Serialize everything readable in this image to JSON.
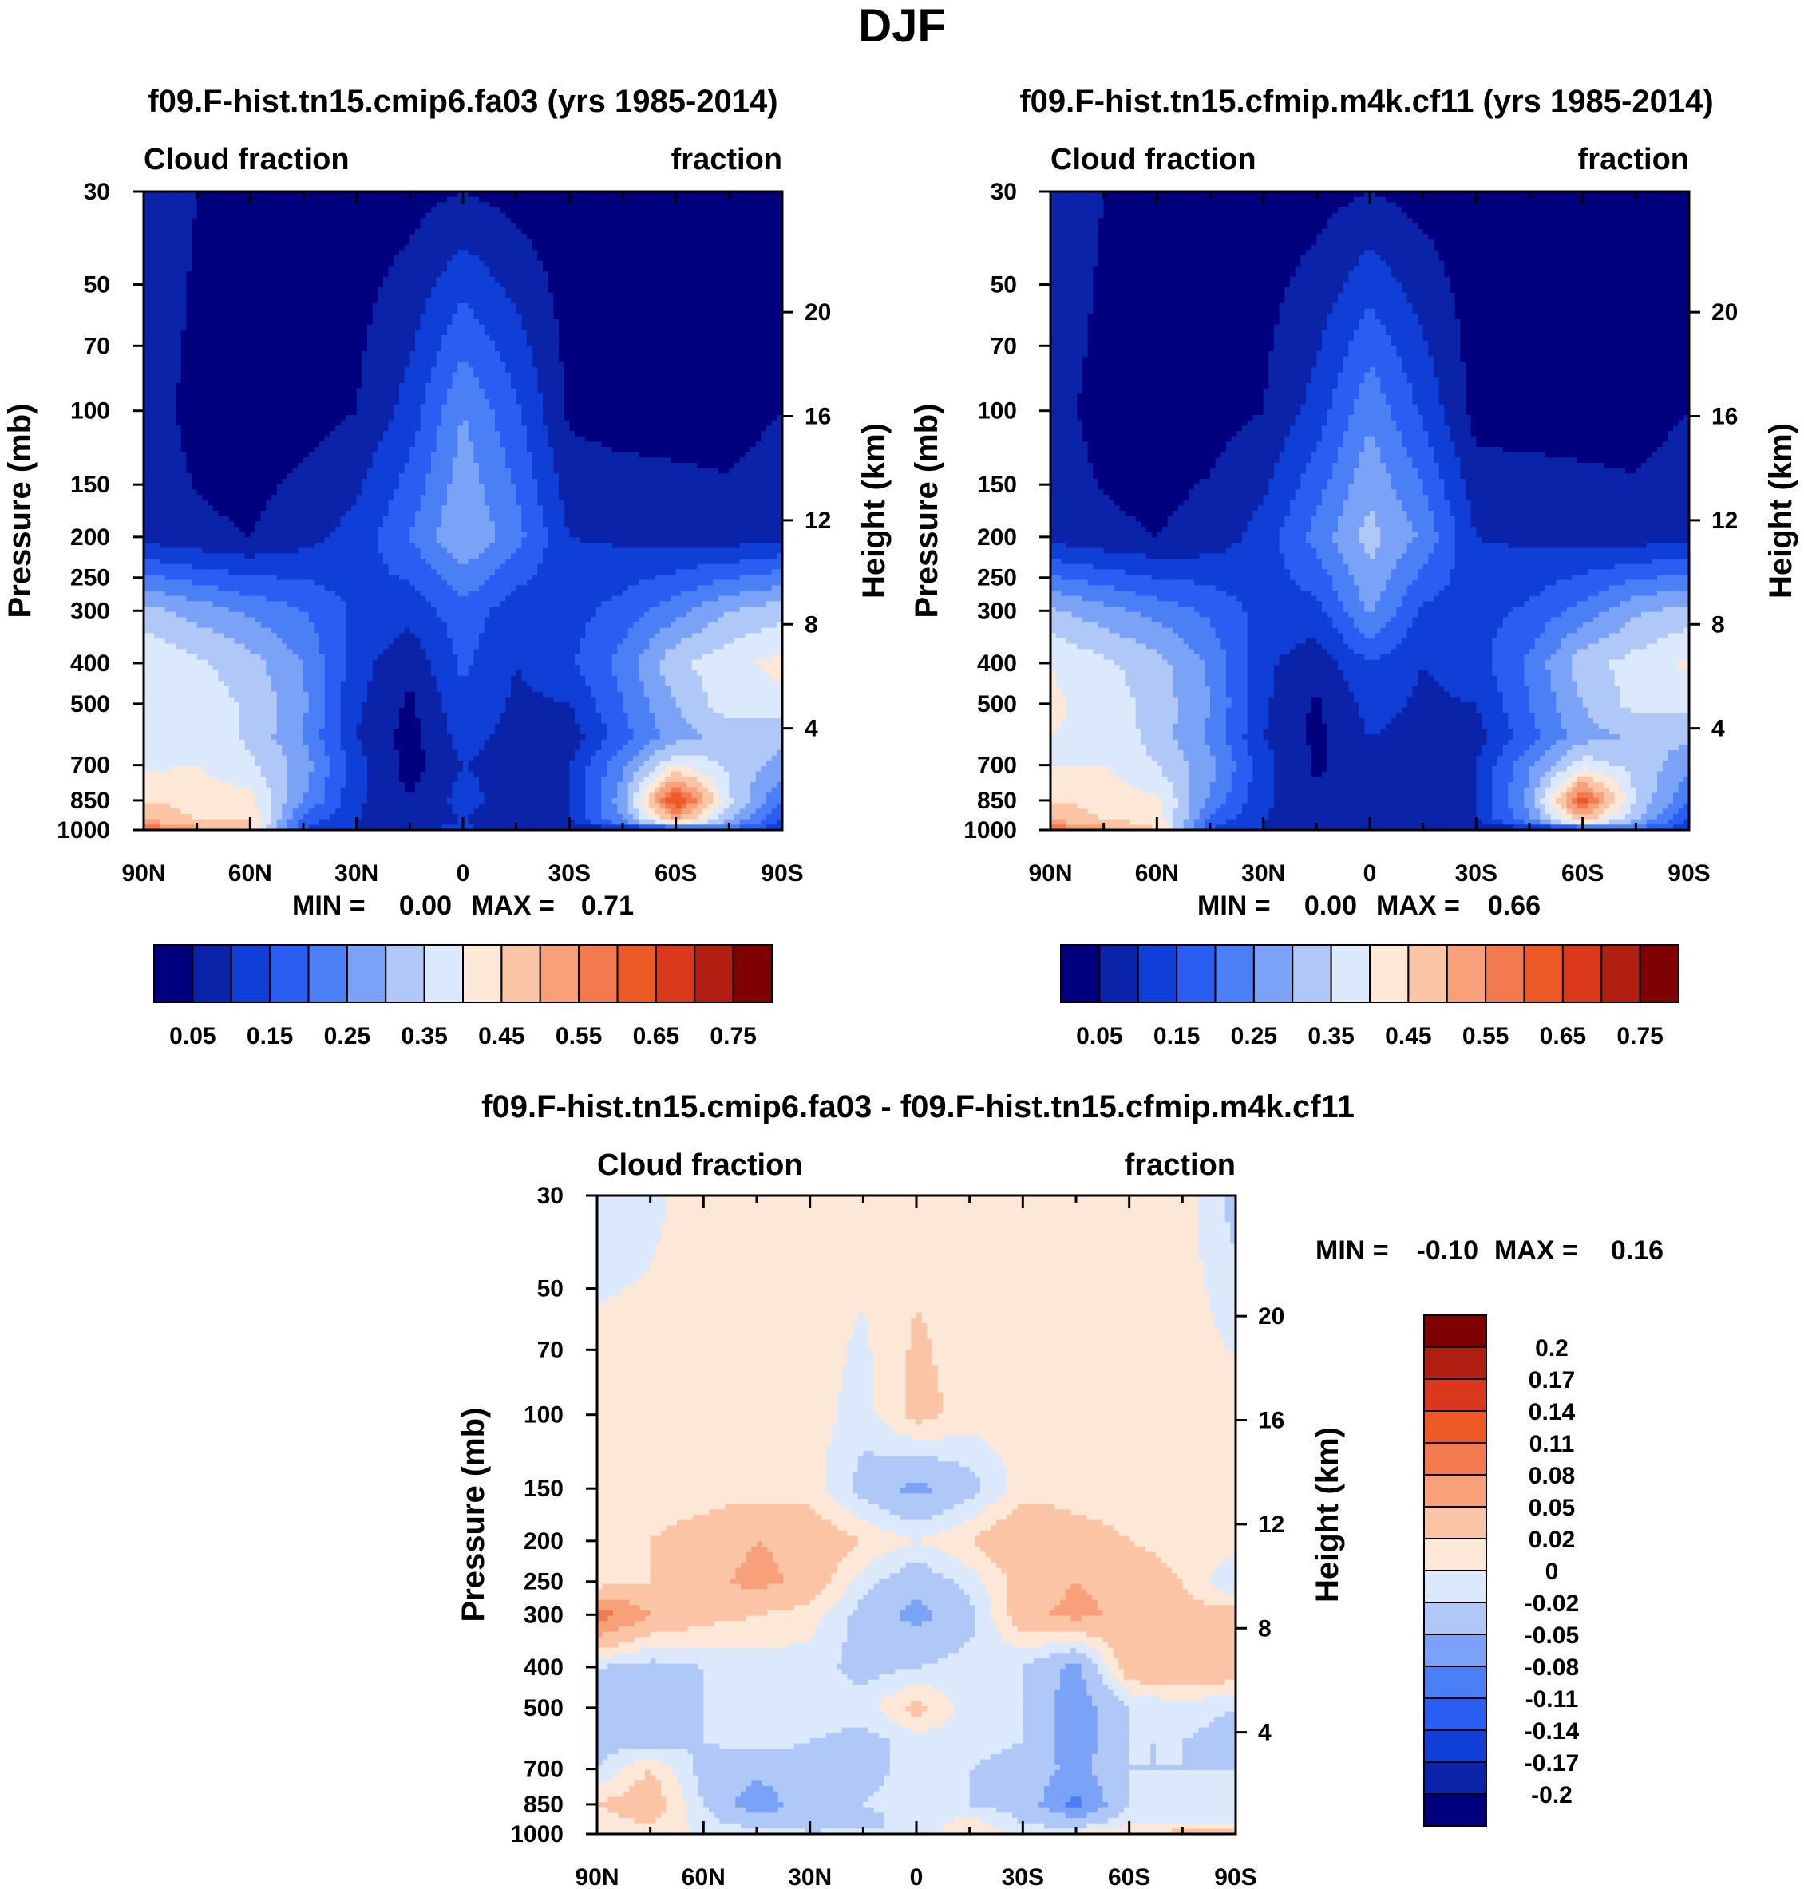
{
  "figure": {
    "title": "DJF",
    "colors": {
      "seq": [
        "#00007f",
        "#0a23a8",
        "#0f3fd6",
        "#2a5ef3",
        "#4a7ff5",
        "#7aa2f7",
        "#b0c8f8",
        "#dce8fb",
        "#fde7d6",
        "#fbc4a5",
        "#f8a07a",
        "#f37a4e",
        "#ee5a26",
        "#d9381a",
        "#b11f10",
        "#7f0000"
      ],
      "diff": [
        "#00007f",
        "#0a23a8",
        "#0f3fd6",
        "#2a5ef3",
        "#4a7ff5",
        "#7aa2f7",
        "#b0c8f8",
        "#dce8fb",
        "#fde7d6",
        "#fbc4a5",
        "#f8a07a",
        "#f37a4e",
        "#ee5a26",
        "#d9381a",
        "#b11f10",
        "#7f0000"
      ]
    }
  },
  "chart_data": [
    {
      "type": "heatmap",
      "panel": "top-left",
      "title": "f09.F-hist.tn15.cmip6.fa03 (yrs 1985-2014)",
      "left_label": "Cloud fraction",
      "right_label": "fraction",
      "ylabel": "Pressure (mb)",
      "y2label": "Height (km)",
      "x_ticks": [
        "90N",
        "60N",
        "30N",
        "0",
        "30S",
        "60S",
        "90S"
      ],
      "x_range": [
        -90,
        90
      ],
      "y_ticks": [
        30,
        50,
        70,
        100,
        150,
        200,
        250,
        300,
        400,
        500,
        700,
        850,
        1000
      ],
      "y_tick_labels": [
        "30",
        "50",
        "70",
        "100",
        "150",
        "200",
        "250",
        "300",
        "400",
        "500",
        "700",
        "850",
        "1000"
      ],
      "y2_ticks": [
        20,
        16,
        12,
        8,
        4
      ],
      "y2_tick_labels": [
        "20",
        "16",
        "12",
        "8",
        "4"
      ],
      "stats": {
        "min_label": "MIN =",
        "min": "0.00",
        "max_label": "MAX =",
        "max": "0.71"
      },
      "colorbar": {
        "orientation": "horizontal",
        "labels": [
          "0.05",
          "0.15",
          "0.25",
          "0.35",
          "0.45",
          "0.55",
          "0.65",
          "0.75"
        ],
        "levels": [
          0.05,
          0.1,
          0.15,
          0.2,
          0.25,
          0.3,
          0.35,
          0.4,
          0.45,
          0.5,
          0.55,
          0.6,
          0.65,
          0.7,
          0.75
        ]
      },
      "levels": [
        0.05,
        0.1,
        0.15,
        0.2,
        0.25,
        0.3,
        0.35,
        0.4,
        0.45,
        0.5,
        0.55,
        0.6,
        0.65,
        0.7,
        0.75
      ],
      "grid": {
        "lat": [
          -90,
          -75,
          -60,
          -45,
          -30,
          -15,
          0,
          15,
          30,
          45,
          60,
          75,
          90
        ],
        "pressure": [
          30,
          100,
          200,
          300,
          400,
          500,
          600,
          700,
          850,
          950,
          1000
        ],
        "values": [
          [
            0.1,
            0.05,
            0.03,
            0.03,
            0.02,
            0.03,
            0.05,
            0.03,
            0.02,
            0.02,
            0.02,
            0.02,
            0.03
          ],
          [
            0.08,
            0.03,
            0.02,
            0.03,
            0.05,
            0.12,
            0.25,
            0.16,
            0.04,
            0.03,
            0.03,
            0.03,
            0.05
          ],
          [
            0.08,
            0.06,
            0.05,
            0.08,
            0.12,
            0.2,
            0.3,
            0.22,
            0.1,
            0.09,
            0.08,
            0.07,
            0.09
          ],
          [
            0.32,
            0.28,
            0.24,
            0.2,
            0.14,
            0.12,
            0.18,
            0.12,
            0.13,
            0.17,
            0.23,
            0.3,
            0.33
          ],
          [
            0.4,
            0.36,
            0.32,
            0.25,
            0.12,
            0.06,
            0.16,
            0.1,
            0.14,
            0.22,
            0.34,
            0.38,
            0.42
          ],
          [
            0.4,
            0.38,
            0.34,
            0.26,
            0.11,
            0.04,
            0.14,
            0.09,
            0.1,
            0.2,
            0.3,
            0.38,
            0.38
          ],
          [
            0.39,
            0.39,
            0.34,
            0.25,
            0.1,
            0.03,
            0.12,
            0.08,
            0.07,
            0.18,
            0.28,
            0.32,
            0.32
          ],
          [
            0.39,
            0.4,
            0.36,
            0.28,
            0.12,
            0.03,
            0.1,
            0.08,
            0.1,
            0.24,
            0.4,
            0.34,
            0.28
          ],
          [
            0.45,
            0.43,
            0.42,
            0.25,
            0.11,
            0.05,
            0.12,
            0.07,
            0.1,
            0.28,
            0.66,
            0.36,
            0.2
          ],
          [
            0.5,
            0.45,
            0.45,
            0.18,
            0.1,
            0.07,
            0.1,
            0.06,
            0.1,
            0.25,
            0.5,
            0.3,
            0.15
          ],
          [
            0.6,
            0.52,
            0.45,
            0.15,
            0.1,
            0.08,
            0.12,
            0.05,
            0.05,
            0.07,
            0.1,
            0.2,
            0.1
          ]
        ]
      }
    },
    {
      "type": "heatmap",
      "panel": "top-right",
      "title": "f09.F-hist.tn15.cfmip.m4k.cf11 (yrs 1985-2014)",
      "left_label": "Cloud fraction",
      "right_label": "fraction",
      "ylabel": "Pressure (mb)",
      "y2label": "Height (km)",
      "x_ticks": [
        "90N",
        "60N",
        "30N",
        "0",
        "30S",
        "60S",
        "90S"
      ],
      "x_range": [
        -90,
        90
      ],
      "y_ticks": [
        30,
        50,
        70,
        100,
        150,
        200,
        250,
        300,
        400,
        500,
        700,
        850,
        1000
      ],
      "y_tick_labels": [
        "30",
        "50",
        "70",
        "100",
        "150",
        "200",
        "250",
        "300",
        "400",
        "500",
        "700",
        "850",
        "1000"
      ],
      "y2_ticks": [
        20,
        16,
        12,
        8,
        4
      ],
      "y2_tick_labels": [
        "20",
        "16",
        "12",
        "8",
        "4"
      ],
      "stats": {
        "min_label": "MIN =",
        "min": "0.00",
        "max_label": "MAX =",
        "max": "0.66"
      },
      "colorbar": {
        "orientation": "horizontal",
        "labels": [
          "0.05",
          "0.15",
          "0.25",
          "0.35",
          "0.45",
          "0.55",
          "0.65",
          "0.75"
        ],
        "levels": [
          0.05,
          0.1,
          0.15,
          0.2,
          0.25,
          0.3,
          0.35,
          0.4,
          0.45,
          0.5,
          0.55,
          0.6,
          0.65,
          0.7,
          0.75
        ]
      },
      "levels": [
        0.05,
        0.1,
        0.15,
        0.2,
        0.25,
        0.3,
        0.35,
        0.4,
        0.45,
        0.5,
        0.55,
        0.6,
        0.65,
        0.7,
        0.75
      ],
      "grid": {
        "lat": [
          -90,
          -75,
          -60,
          -45,
          -30,
          -15,
          0,
          15,
          30,
          45,
          60,
          75,
          90
        ],
        "pressure": [
          30,
          100,
          200,
          300,
          400,
          500,
          600,
          700,
          850,
          950,
          1000
        ],
        "values": [
          [
            0.1,
            0.05,
            0.03,
            0.03,
            0.02,
            0.03,
            0.05,
            0.03,
            0.02,
            0.02,
            0.02,
            0.02,
            0.03
          ],
          [
            0.07,
            0.03,
            0.02,
            0.03,
            0.05,
            0.12,
            0.24,
            0.14,
            0.03,
            0.03,
            0.03,
            0.03,
            0.05
          ],
          [
            0.08,
            0.06,
            0.05,
            0.07,
            0.12,
            0.22,
            0.32,
            0.24,
            0.1,
            0.09,
            0.08,
            0.07,
            0.09
          ],
          [
            0.31,
            0.27,
            0.23,
            0.19,
            0.13,
            0.13,
            0.26,
            0.14,
            0.13,
            0.16,
            0.22,
            0.29,
            0.32
          ],
          [
            0.4,
            0.36,
            0.32,
            0.24,
            0.11,
            0.07,
            0.15,
            0.1,
            0.13,
            0.21,
            0.33,
            0.37,
            0.41
          ],
          [
            0.41,
            0.38,
            0.33,
            0.25,
            0.11,
            0.04,
            0.12,
            0.09,
            0.1,
            0.2,
            0.3,
            0.37,
            0.37
          ],
          [
            0.4,
            0.39,
            0.33,
            0.24,
            0.1,
            0.04,
            0.1,
            0.08,
            0.08,
            0.18,
            0.28,
            0.31,
            0.31
          ],
          [
            0.4,
            0.4,
            0.35,
            0.27,
            0.12,
            0.04,
            0.09,
            0.08,
            0.1,
            0.24,
            0.38,
            0.33,
            0.27
          ],
          [
            0.45,
            0.43,
            0.41,
            0.24,
            0.11,
            0.06,
            0.1,
            0.07,
            0.1,
            0.27,
            0.62,
            0.35,
            0.2
          ],
          [
            0.5,
            0.45,
            0.44,
            0.18,
            0.1,
            0.07,
            0.09,
            0.06,
            0.1,
            0.24,
            0.48,
            0.3,
            0.15
          ],
          [
            0.6,
            0.52,
            0.45,
            0.15,
            0.1,
            0.08,
            0.1,
            0.05,
            0.05,
            0.07,
            0.1,
            0.2,
            0.1
          ]
        ]
      }
    },
    {
      "type": "heatmap",
      "panel": "bottom",
      "title": "f09.F-hist.tn15.cmip6.fa03 - f09.F-hist.tn15.cfmip.m4k.cf11",
      "left_label": "Cloud fraction",
      "right_label": "fraction",
      "ylabel": "Pressure (mb)",
      "y2label": "Height (km)",
      "x_ticks": [
        "90N",
        "60N",
        "30N",
        "0",
        "30S",
        "60S",
        "90S"
      ],
      "x_range": [
        -90,
        90
      ],
      "y_ticks": [
        30,
        50,
        70,
        100,
        150,
        200,
        250,
        300,
        400,
        500,
        700,
        850,
        1000
      ],
      "y_tick_labels": [
        "30",
        "50",
        "70",
        "100",
        "150",
        "200",
        "250",
        "300",
        "400",
        "500",
        "700",
        "850",
        "1000"
      ],
      "y2_ticks": [
        20,
        16,
        12,
        8,
        4
      ],
      "y2_tick_labels": [
        "20",
        "16",
        "12",
        "8",
        "4"
      ],
      "stats": {
        "min_label": "MIN =",
        "min": "-0.10",
        "max_label": "MAX =",
        "max": "0.16"
      },
      "colorbar": {
        "orientation": "vertical",
        "labels": [
          "0.2",
          "0.17",
          "0.14",
          "0.11",
          "0.08",
          "0.05",
          "0.02",
          "0",
          "-0.02",
          "-0.05",
          "-0.08",
          "-0.11",
          "-0.14",
          "-0.17",
          "-0.2"
        ],
        "levels": [
          -0.2,
          -0.17,
          -0.14,
          -0.11,
          -0.08,
          -0.05,
          -0.02,
          0,
          0.02,
          0.05,
          0.08,
          0.11,
          0.14,
          0.17,
          0.2
        ]
      },
      "levels": [
        -0.2,
        -0.17,
        -0.14,
        -0.11,
        -0.08,
        -0.05,
        -0.02,
        0,
        0.02,
        0.05,
        0.08,
        0.11,
        0.14,
        0.17,
        0.2
      ],
      "grid": {
        "lat": [
          -90,
          -75,
          -60,
          -45,
          -30,
          -15,
          0,
          15,
          30,
          45,
          60,
          75,
          90
        ],
        "pressure": [
          30,
          100,
          150,
          200,
          250,
          300,
          400,
          500,
          600,
          700,
          850,
          950,
          1000
        ],
        "values": [
          [
            -0.01,
            -0.005,
            0.01,
            0.01,
            0.01,
            0.01,
            0.01,
            0.01,
            0.01,
            0.01,
            0.01,
            0.01,
            -0.03
          ],
          [
            0.01,
            0.01,
            0.01,
            0.01,
            0.01,
            -0.01,
            0.03,
            0.01,
            0.01,
            0.01,
            0.01,
            0.01,
            0.01
          ],
          [
            0.01,
            0.01,
            0.01,
            0.01,
            0.01,
            -0.03,
            -0.06,
            -0.03,
            0.01,
            0.01,
            0.01,
            0.01,
            0.01
          ],
          [
            0.005,
            0.02,
            0.03,
            0.05,
            0.04,
            0.02,
            0.0,
            0.02,
            0.05,
            0.03,
            0.02,
            0.01,
            0.01
          ],
          [
            0.005,
            0.02,
            0.04,
            0.06,
            0.04,
            -0.01,
            -0.04,
            -0.01,
            0.03,
            0.05,
            0.04,
            0.02,
            -0.02
          ],
          [
            0.1,
            0.05,
            0.03,
            0.02,
            0.01,
            -0.03,
            -0.06,
            -0.03,
            0.04,
            0.06,
            0.04,
            0.03,
            0.03
          ],
          [
            -0.02,
            -0.03,
            -0.02,
            -0.01,
            -0.01,
            -0.03,
            -0.02,
            -0.01,
            -0.02,
            -0.06,
            0.04,
            0.05,
            0.04
          ],
          [
            -0.03,
            -0.03,
            -0.02,
            -0.01,
            0.0,
            -0.01,
            0.03,
            -0.01,
            -0.02,
            -0.07,
            -0.02,
            -0.01,
            -0.02
          ],
          [
            -0.03,
            -0.03,
            -0.02,
            -0.01,
            -0.02,
            -0.03,
            -0.01,
            -0.01,
            -0.02,
            -0.07,
            -0.02,
            -0.02,
            -0.03
          ],
          [
            -0.02,
            0.02,
            -0.03,
            -0.04,
            -0.03,
            -0.03,
            -0.01,
            -0.02,
            -0.03,
            -0.06,
            -0.02,
            -0.02,
            -0.02
          ],
          [
            0.02,
            0.04,
            -0.02,
            -0.07,
            -0.03,
            -0.02,
            -0.01,
            -0.02,
            -0.03,
            -0.09,
            -0.02,
            0.0,
            -0.01
          ],
          [
            0.01,
            0.02,
            -0.01,
            -0.03,
            -0.05,
            -0.03,
            -0.01,
            0.01,
            -0.02,
            -0.03,
            0.0,
            0.0,
            0.0
          ],
          [
            0.01,
            0.01,
            0.0,
            0.0,
            -0.01,
            -0.01,
            -0.01,
            0.01,
            0.0,
            0.01,
            0.02,
            0.03,
            0.03
          ]
        ]
      }
    }
  ]
}
